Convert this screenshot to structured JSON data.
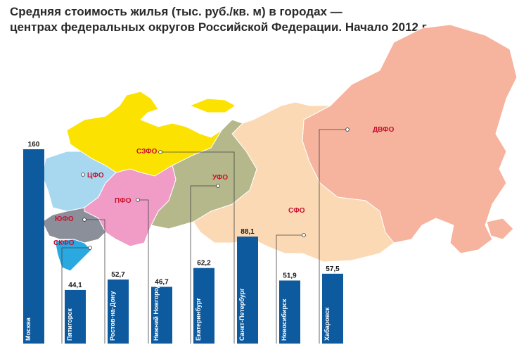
{
  "title_line1": "Средняя стоимость жилья (тыс. руб./кв. м) в городах —",
  "title_line2": "центрах федеральных округов Российской Федерации. Начало 2012 г.",
  "colors": {
    "bar": "#0d5a9e",
    "district_label": "#c8102e",
    "szfo": "#fbe200",
    "cfo": "#a8d8f0",
    "pfo": "#f09cc6",
    "yufo": "#8a8f9a",
    "skfo": "#2aa8e0",
    "ufo": "#b5b88a",
    "sfo": "#fbd9b4",
    "dvfo": "#f6b39e"
  },
  "districts": {
    "szfo": "СЗФО",
    "cfo": "ЦФО",
    "pfo": "ПФО",
    "yufo": "ЮФО",
    "skfo": "СКФО",
    "ufo": "УФО",
    "sfo": "СФО",
    "dvfo": "ДВФО"
  },
  "chart_data": {
    "type": "bar",
    "title": "Средняя стоимость жилья (тыс. руб./кв. м) в городах — центрах федеральных округов Российской Федерации. Начало 2012 г.",
    "categories": [
      "Москва",
      "Пятигорск",
      "Ростов-на-Дону",
      "Нижний Новгород",
      "Екатеринбург",
      "Санкт-Петербург",
      "Новосибирск",
      "Хабаровск"
    ],
    "values": [
      160,
      44.1,
      52.7,
      46.7,
      62.2,
      88.1,
      51.9,
      57.5
    ],
    "value_labels": [
      "160",
      "44,1",
      "52,7",
      "46,7",
      "62,2",
      "88,1",
      "51,9",
      "57,5"
    ],
    "ylim": [
      0,
      160
    ]
  }
}
